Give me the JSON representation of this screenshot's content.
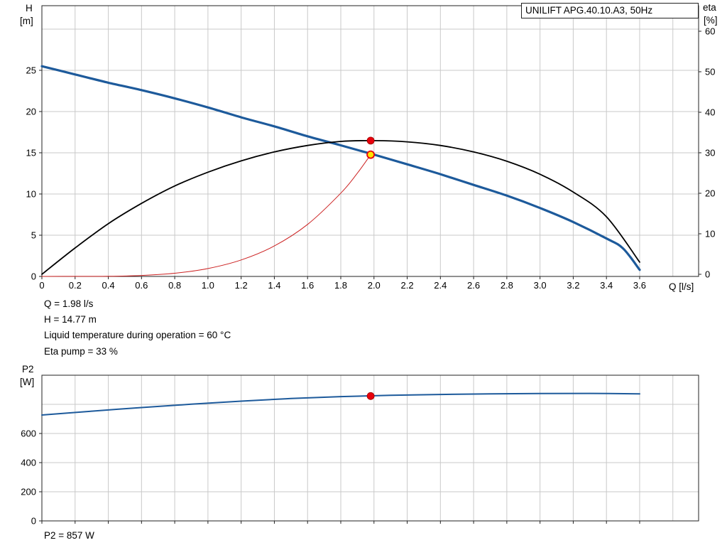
{
  "title_box": {
    "label": "UNILIFT APG.40.10.A3, 50Hz"
  },
  "axis_labels": {
    "h_line1": "H",
    "h_line2": "[m]",
    "eta_line1": "eta",
    "eta_line2": "[%]",
    "q": "Q [l/s]",
    "p2_line1": "P2",
    "p2_line2": "[W]"
  },
  "annotations": {
    "q": "Q = 1.98 l/s",
    "h": "H = 14.77 m",
    "temp": "Liquid temperature during operation = 60 °C",
    "eta": "Eta pump = 33 %",
    "p2": "P2 = 857 W"
  },
  "colors": {
    "pump_curve": "#1d5a9b",
    "efficiency_curve": "#000000",
    "system_curve": "#cc2222",
    "grid": "#c9c9c9",
    "frame": "#222222",
    "point_red": "#e8000d",
    "point_yellow": "#ffe400"
  },
  "chart_data": [
    {
      "type": "line",
      "title": "UNILIFT APG.40.10.A3, 50Hz",
      "x_axis": {
        "label": "Q [l/s]",
        "min": 0,
        "max": 3.955,
        "ticks": [
          0,
          0.2,
          0.4,
          0.6,
          0.8,
          1,
          1.2,
          1.4,
          1.6,
          1.8,
          2,
          2.2,
          2.4,
          2.6,
          2.8,
          3,
          3.2,
          3.4,
          3.6
        ],
        "tick_labels": [
          "0",
          "0.2",
          "0.4",
          "0.6",
          "0.8",
          "1.0",
          "1.2",
          "1.4",
          "1.6",
          "1.8",
          "2.0",
          "2.2",
          "2.4",
          "2.6",
          "2.8",
          "3.0",
          "3.2",
          "3.4",
          "3.6"
        ],
        "grid": [
          0.2,
          0.4,
          0.6,
          0.8,
          1,
          1.2,
          1.4,
          1.6,
          1.8,
          2,
          2.2,
          2.4,
          2.6,
          2.8,
          3,
          3.2,
          3.4,
          3.6,
          3.8
        ]
      },
      "y_left": {
        "label": "H [m]",
        "min": 0,
        "max": 32.84,
        "ticks": [
          0,
          5,
          10,
          15,
          20,
          25
        ],
        "tick_labels": [
          "0",
          "5",
          "10",
          "15",
          "20",
          "25"
        ],
        "grid": [
          5,
          10,
          15,
          20,
          25,
          30
        ]
      },
      "y_right": {
        "label": "eta [%]",
        "min": -0.53,
        "max": 66.31,
        "ticks": [
          0,
          10,
          20,
          30,
          40,
          50,
          60
        ],
        "tick_labels": [
          "0",
          "10",
          "20",
          "30",
          "40",
          "50",
          "60"
        ],
        "grid": []
      },
      "series": [
        {
          "name": "pump-curve",
          "axis": "left",
          "color": "#1d5a9b",
          "width": 3.2,
          "x": [
            0,
            0.2,
            0.4,
            0.6,
            0.8,
            1,
            1.2,
            1.4,
            1.6,
            1.8,
            2,
            2.2,
            2.4,
            2.6,
            2.8,
            3,
            3.2,
            3.4,
            3.5,
            3.6
          ],
          "y": [
            25.5,
            24.5,
            23.5,
            22.6,
            21.6,
            20.5,
            19.3,
            18.2,
            17,
            15.9,
            14.77,
            13.6,
            12.4,
            11.1,
            9.8,
            8.3,
            6.6,
            4.6,
            3.4,
            0.8
          ]
        },
        {
          "name": "efficiency-curve",
          "axis": "right",
          "color": "#000000",
          "width": 1.8,
          "x": [
            0,
            0.2,
            0.4,
            0.6,
            0.8,
            1,
            1.2,
            1.4,
            1.6,
            1.8,
            2,
            2.2,
            2.4,
            2.6,
            2.8,
            3,
            3.2,
            3.4,
            3.6
          ],
          "y": [
            0,
            6.5,
            12.5,
            17.5,
            21.8,
            25.2,
            28,
            30.2,
            31.8,
            32.8,
            33,
            32.7,
            31.8,
            30.2,
            27.9,
            24.7,
            20.3,
            14.2,
            3
          ]
        },
        {
          "name": "system-curve",
          "axis": "left",
          "color": "#cc2222",
          "width": 1,
          "x": [
            0,
            0.2,
            0.4,
            0.6,
            0.8,
            1,
            1.2,
            1.4,
            1.6,
            1.8,
            1.9,
            1.98
          ],
          "y": [
            0,
            0.01,
            0.02,
            0.12,
            0.39,
            0.96,
            2,
            3.7,
            6.31,
            10.1,
            12.53,
            14.77
          ]
        }
      ],
      "points": [
        {
          "name": "efficiency-point",
          "axis": "right",
          "x": 1.98,
          "y": 33,
          "fill": "#e8000d",
          "stroke": "#a00000",
          "stroke_width": 0.8,
          "r": 5
        },
        {
          "name": "duty-point",
          "axis": "left",
          "x": 1.98,
          "y": 14.77,
          "fill": "#ffe400",
          "stroke": "#e8000d",
          "stroke_width": 1.8,
          "r": 5
        }
      ]
    },
    {
      "type": "line",
      "title": "P2",
      "x_axis": {
        "label": "",
        "min": 0,
        "max": 3.955,
        "ticks": [
          0,
          0.2,
          0.4,
          0.6,
          0.8,
          1,
          1.2,
          1.4,
          1.6,
          1.8,
          2,
          2.2,
          2.4,
          2.6,
          2.8,
          3,
          3.2,
          3.4,
          3.6
        ],
        "tick_labels": [],
        "grid": [
          0.2,
          0.4,
          0.6,
          0.8,
          1,
          1.2,
          1.4,
          1.6,
          1.8,
          2,
          2.2,
          2.4,
          2.6,
          2.8,
          3,
          3.2,
          3.4,
          3.6,
          3.8
        ]
      },
      "y_left": {
        "label": "P2 [W]",
        "min": 0,
        "max": 1000,
        "ticks": [
          0,
          200,
          400,
          600
        ],
        "tick_labels": [
          "0",
          "200",
          "400",
          "600"
        ],
        "grid": [
          200,
          400,
          600,
          800
        ]
      },
      "series": [
        {
          "name": "p2-curve",
          "axis": "left",
          "color": "#1d5a9b",
          "width": 2,
          "x": [
            0,
            0.3,
            0.6,
            0.9,
            1.2,
            1.5,
            1.8,
            2.1,
            2.4,
            2.7,
            3,
            3.3,
            3.6
          ],
          "y": [
            727,
            753,
            778,
            801,
            822,
            840,
            853,
            862,
            868,
            872,
            874,
            875,
            872
          ]
        }
      ],
      "points": [
        {
          "name": "p2-point",
          "axis": "left",
          "x": 1.98,
          "y": 857,
          "fill": "#e8000d",
          "stroke": "#a00000",
          "stroke_width": 0.8,
          "r": 5
        }
      ]
    }
  ]
}
